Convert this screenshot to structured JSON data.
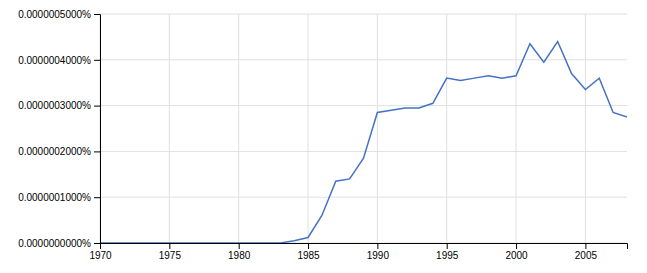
{
  "chart_data": {
    "type": "line",
    "x": [
      1970,
      1971,
      1972,
      1973,
      1974,
      1975,
      1976,
      1977,
      1978,
      1979,
      1980,
      1981,
      1982,
      1983,
      1984,
      1985,
      1986,
      1987,
      1988,
      1989,
      1990,
      1991,
      1992,
      1993,
      1994,
      1995,
      1996,
      1997,
      1998,
      1999,
      2000,
      2001,
      2002,
      2003,
      2004,
      2005,
      2006,
      2007,
      2008
    ],
    "values": [
      0.0,
      0.0,
      0.0,
      0.0,
      0.0,
      0.0,
      0.0,
      0.0,
      0.0,
      0.0,
      0.0,
      0.0,
      0.0,
      0.0,
      5e-09,
      1.2e-08,
      6e-08,
      1.35e-07,
      1.4e-07,
      1.85e-07,
      2.85e-07,
      2.9e-07,
      2.95e-07,
      2.95e-07,
      3.05e-07,
      3.6e-07,
      3.55e-07,
      3.6e-07,
      3.65e-07,
      3.6e-07,
      3.65e-07,
      4.35e-07,
      3.95e-07,
      4.4e-07,
      3.7e-07,
      3.35e-07,
      3.6e-07,
      2.85e-07,
      2.75e-07
    ],
    "color": "#4472C4",
    "xlim": [
      1970,
      2008
    ],
    "ylim": [
      0,
      5e-07
    ],
    "xticks": [
      1970,
      1975,
      1980,
      1985,
      1990,
      1995,
      2000,
      2005
    ],
    "yticks": [
      {
        "value": 0.0,
        "label": "0.0000000000%"
      },
      {
        "value": 1e-07,
        "label": "0.0000001000%"
      },
      {
        "value": 2e-07,
        "label": "0.0000002000%"
      },
      {
        "value": 3e-07,
        "label": "0.0000003000%"
      },
      {
        "value": 4e-07,
        "label": "0.0000004000%"
      },
      {
        "value": 5e-07,
        "label": "0.0000005000%"
      }
    ],
    "grid": true
  }
}
